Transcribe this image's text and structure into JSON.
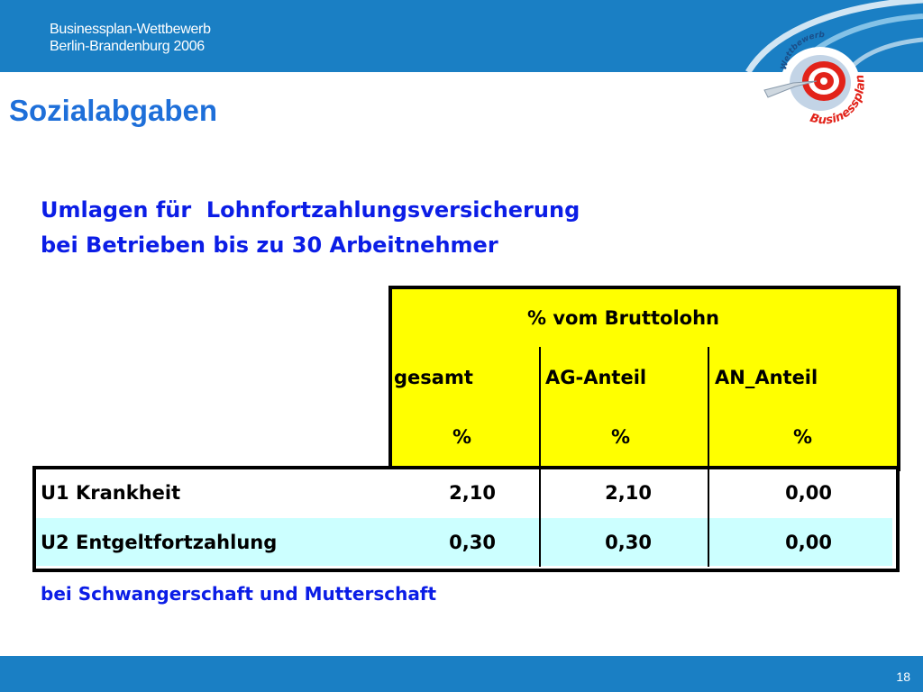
{
  "header": {
    "line1": "Businessplan-Wettbewerb",
    "line2": "Berlin-Brandenburg 2006"
  },
  "logo": {
    "arc_top": "Wettbewerb",
    "arc_bottom": "Businessplan"
  },
  "title": "Sozialabgaben",
  "subtitle": {
    "line1": "Umlagen für  Lohnfortzahlungsversicherung",
    "line2": "bei Betrieben bis zu 30 Arbeitnehmer"
  },
  "table": {
    "group_header": "% vom Bruttolohn",
    "columns": [
      "gesamt",
      "AG-Anteil",
      "AN_Anteil"
    ],
    "unit": "%",
    "rows": [
      {
        "label": "U1 Krankheit",
        "values": [
          "2,10",
          "2,10",
          "0,00"
        ]
      },
      {
        "label": "U2 Entgeltfortzahlung",
        "values": [
          "0,30",
          "0,30",
          "0,00"
        ]
      }
    ]
  },
  "footnote": "bei Schwangerschaft und Mutterschaft",
  "page_number": "18",
  "colors": {
    "band": "#1a7fc4",
    "title": "#1e6fd9",
    "text_blue": "#0b1de6",
    "header_fill": "#ffff00",
    "row_alt": "#ccffff"
  }
}
